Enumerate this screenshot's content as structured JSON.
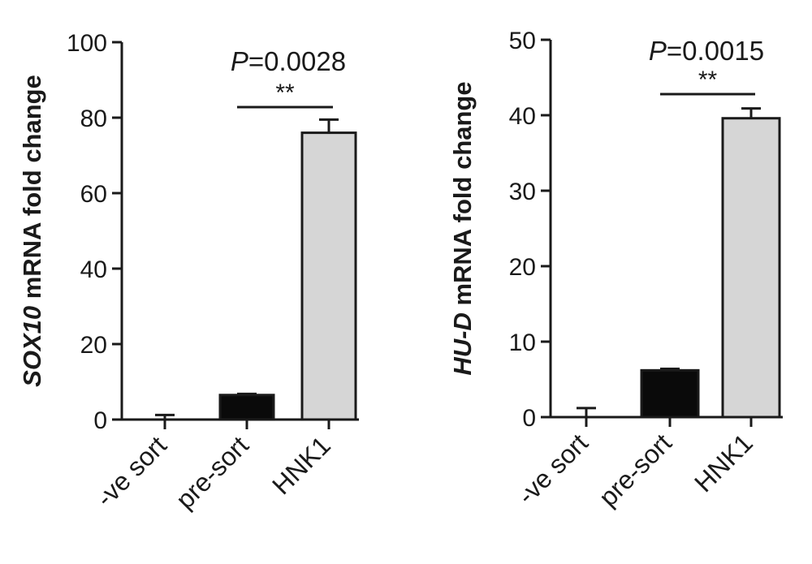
{
  "chart_data": [
    {
      "type": "bar",
      "ylabel_italic": "SOX10",
      "ylabel_rest": " mRNA fold change",
      "categories": [
        "-ve sort",
        "pre-sort",
        "HNK1"
      ],
      "values": [
        0,
        6.5,
        76
      ],
      "errors": [
        1.2,
        0.3,
        3.5
      ],
      "bar_colors": [
        "#ffffff",
        "#0a0a0a",
        "#d6d6d6"
      ],
      "ylim": [
        0,
        100
      ],
      "yticks": [
        0,
        20,
        40,
        60,
        80,
        100
      ],
      "significance": {
        "from": 1,
        "to": 2,
        "label": "**",
        "p_italic": "P",
        "p_rest": "=0.0028"
      }
    },
    {
      "type": "bar",
      "ylabel_italic": "HU-D",
      "ylabel_rest": " mRNA fold change",
      "categories": [
        "-ve sort",
        "pre-sort",
        "HNK1"
      ],
      "values": [
        0,
        6.2,
        39.6
      ],
      "errors": [
        1.2,
        0.2,
        1.3
      ],
      "bar_colors": [
        "#ffffff",
        "#0a0a0a",
        "#d6d6d6"
      ],
      "ylim": [
        0,
        50
      ],
      "yticks": [
        0,
        10,
        20,
        30,
        40,
        50
      ],
      "significance": {
        "from": 1,
        "to": 2,
        "label": "**",
        "p_italic": "P",
        "p_rest": "=0.0015"
      }
    }
  ]
}
